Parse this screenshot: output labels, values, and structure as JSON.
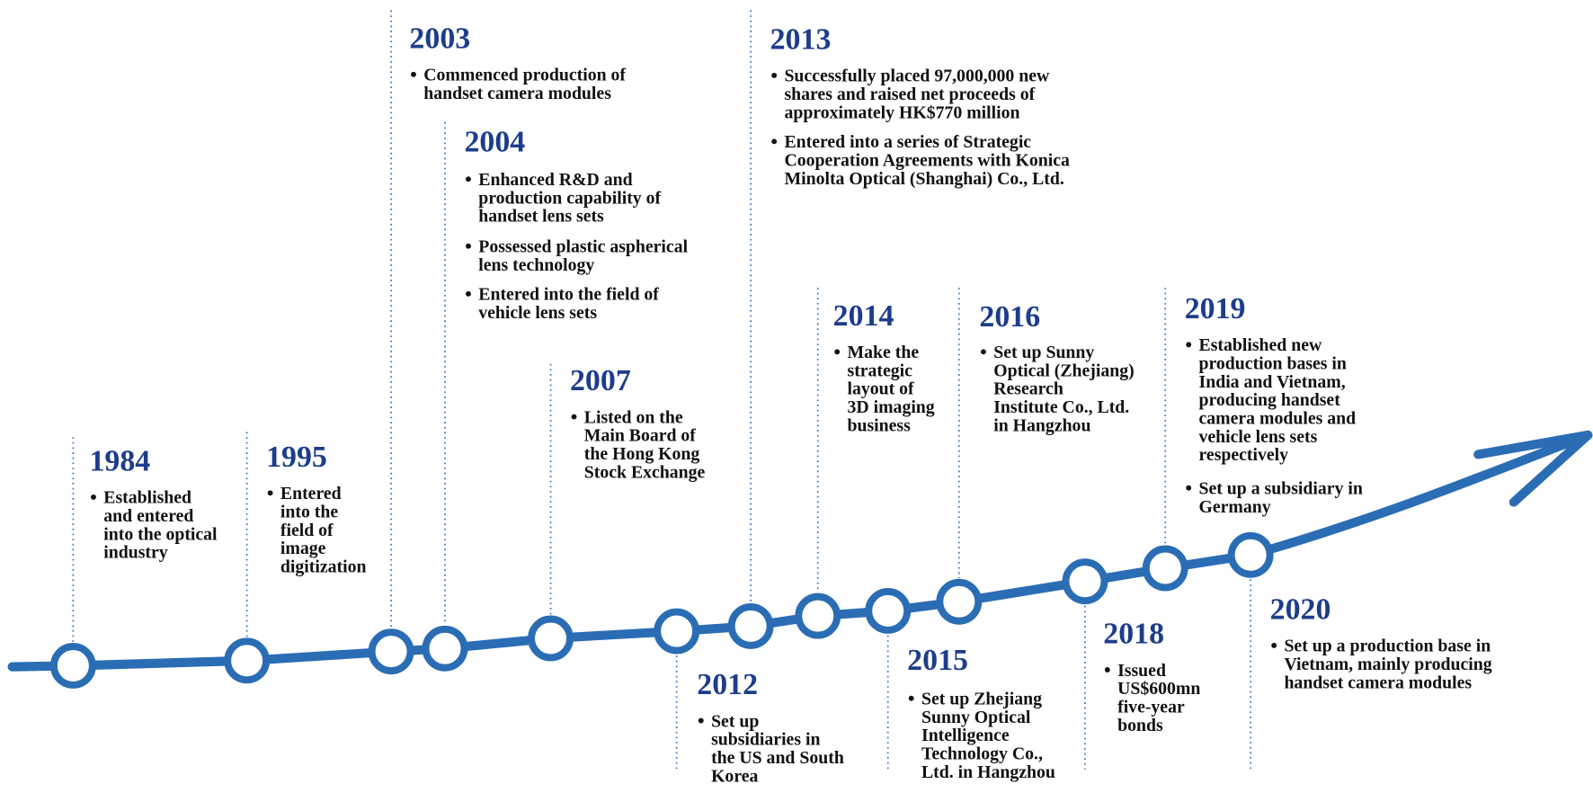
{
  "events": [
    {
      "year": "1984",
      "bullets": [
        [
          "Established",
          "and entered",
          "into the optical",
          "industry"
        ]
      ]
    },
    {
      "year": "1995",
      "bullets": [
        [
          "Entered",
          "into the",
          "field of",
          "image",
          "digitization"
        ]
      ]
    },
    {
      "year": "2003",
      "bullets": [
        [
          "Commenced production of",
          "handset camera modules"
        ]
      ]
    },
    {
      "year": "2004",
      "bullets": [
        [
          "Enhanced R&D and",
          "production capability of",
          "handset lens sets"
        ],
        [
          "Possessed plastic aspherical",
          "lens technology"
        ],
        [
          "Entered into the field of",
          "vehicle lens sets"
        ]
      ]
    },
    {
      "year": "2007",
      "bullets": [
        [
          "Listed on the",
          "Main Board of",
          "the Hong Kong",
          "Stock Exchange"
        ]
      ]
    },
    {
      "year": "2012",
      "bullets": [
        [
          "Set up",
          "subsidiaries in",
          "the US and South",
          "Korea"
        ]
      ]
    },
    {
      "year": "2013",
      "bullets": [
        [
          "Successfully placed 97,000,000 new",
          "shares and raised net proceeds of",
          "approximately HK$770 million"
        ],
        [
          "Entered into a series of Strategic",
          "Cooperation Agreements with Konica",
          "Minolta Optical (Shanghai) Co., Ltd."
        ]
      ]
    },
    {
      "year": "2014",
      "bullets": [
        [
          "Make the",
          "strategic",
          "layout of",
          "3D imaging",
          "business"
        ]
      ]
    },
    {
      "year": "2015",
      "bullets": [
        [
          "Set up Zhejiang",
          "Sunny Optical",
          "Intelligence",
          "Technology Co.,",
          "Ltd. in Hangzhou"
        ]
      ]
    },
    {
      "year": "2016",
      "bullets": [
        [
          "Set up Sunny",
          "Optical (Zhejiang)",
          "Research",
          "Institute Co., Ltd.",
          "in Hangzhou"
        ]
      ]
    },
    {
      "year": "2018",
      "bullets": [
        [
          "Issued",
          "US$600mn",
          "five-year",
          "bonds"
        ]
      ]
    },
    {
      "year": "2019",
      "bullets": [
        [
          "Established new",
          "production bases in",
          "India and Vietnam,",
          "producing handset",
          "camera modules and",
          "vehicle lens sets",
          "respectively"
        ],
        [
          "Set up a subsidiary in",
          "Germany"
        ]
      ]
    },
    {
      "year": "2020",
      "bullets": [
        [
          "Set up a production base in",
          "Vietnam, mainly producing",
          "handset camera modules"
        ]
      ]
    }
  ]
}
